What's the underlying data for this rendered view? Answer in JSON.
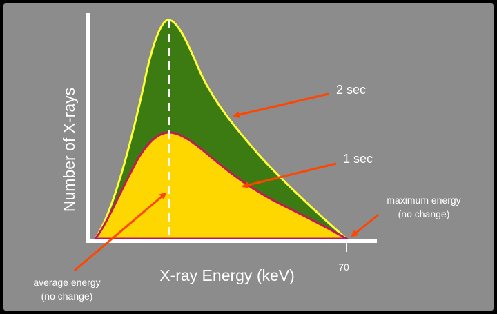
{
  "chart_data": {
    "type": "area",
    "xlabel": "X-ray Energy (keV)",
    "ylabel": "Number of X-rays",
    "x_ticks": [
      70
    ],
    "series": [
      {
        "name": "2 sec",
        "peak_relative": 1.0,
        "fill": "#3c7a12",
        "stroke": "#ffff33"
      },
      {
        "name": "1 sec",
        "peak_relative": 0.5,
        "fill": "#ffd700",
        "stroke": "#c2185b"
      }
    ],
    "annotations": [
      {
        "id": "two-sec",
        "text": [
          "2 sec"
        ]
      },
      {
        "id": "one-sec",
        "text": [
          "1 sec"
        ]
      },
      {
        "id": "max-energy",
        "text": [
          "maximum energy",
          "(no change)"
        ]
      },
      {
        "id": "avg-energy",
        "text": [
          "average energy",
          "(no change)"
        ]
      }
    ],
    "colors": {
      "background": "#8c8c8c",
      "axis": "#ffffff",
      "arrow": "#ff4500",
      "mean_line": "#ffffff"
    }
  }
}
